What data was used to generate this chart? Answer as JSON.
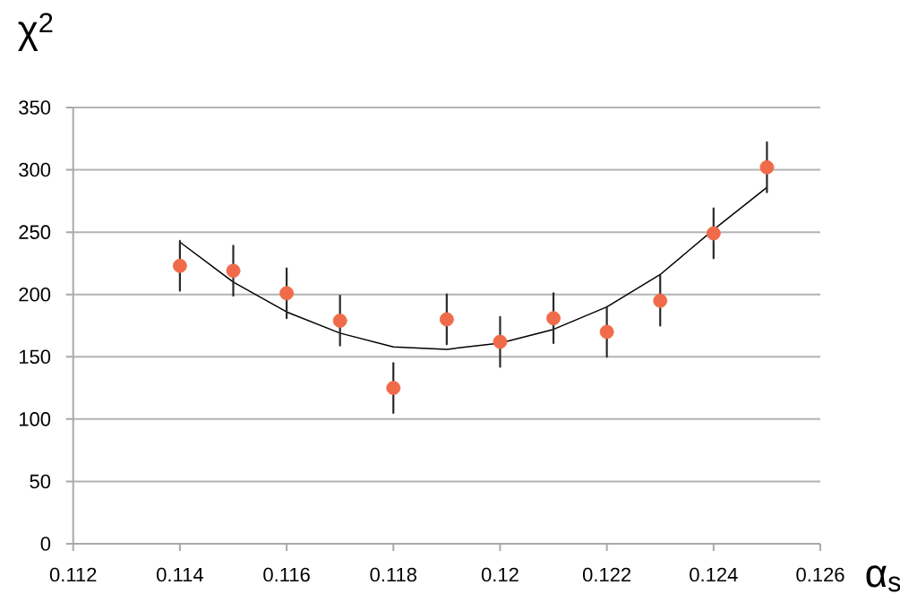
{
  "chart_data": {
    "type": "scatter",
    "xlabel": "α$_{s}$",
    "ylabel": "χ$^{2}$",
    "xlim": [
      0.112,
      0.126
    ],
    "ylim": [
      0,
      350
    ],
    "xticks": [
      0.112,
      0.114,
      0.116,
      0.118,
      0.12,
      0.122,
      0.124,
      0.126
    ],
    "yticks": [
      0,
      50,
      100,
      150,
      200,
      250,
      300,
      350
    ],
    "grid": "y",
    "series": [
      {
        "type": "line",
        "color": "#000000",
        "line_style": "solid",
        "x": [
          0.114,
          0.115,
          0.116,
          0.117,
          0.118,
          0.119,
          0.12,
          0.121,
          0.122,
          0.123,
          0.124,
          0.125
        ],
        "values": [
          242,
          210,
          186,
          169,
          158,
          156,
          161,
          172,
          190,
          216,
          252,
          286
        ]
      },
      {
        "color": "#f06b4a",
        "marker": "circle",
        "x": [
          0.114,
          0.115,
          0.116,
          0.117,
          0.118,
          0.119,
          0.12,
          0.121,
          0.122,
          0.123,
          0.124,
          0.125
        ],
        "values": [
          223,
          219,
          201,
          179,
          125,
          180,
          162,
          181,
          170,
          195,
          249,
          302
        ],
        "errors": [
          20,
          20,
          20,
          20,
          20,
          20,
          20,
          20,
          20,
          20,
          20,
          20
        ]
      }
    ]
  }
}
